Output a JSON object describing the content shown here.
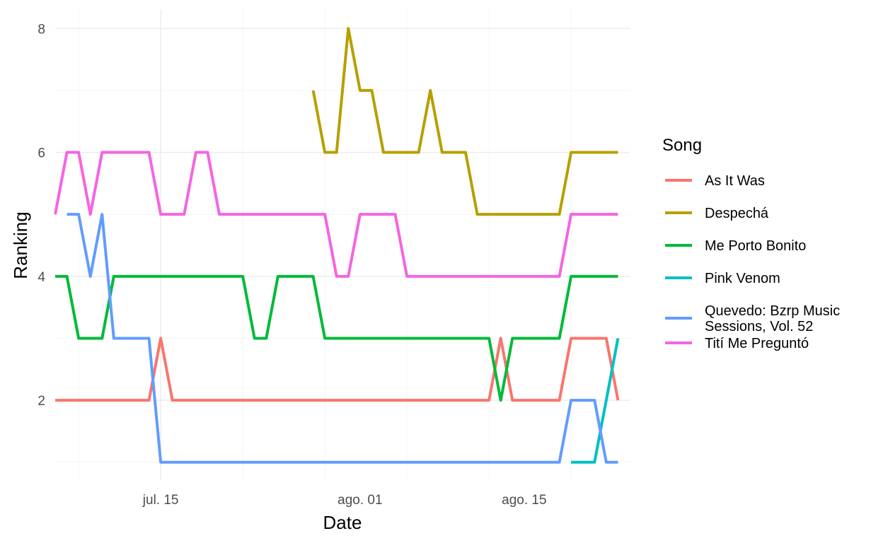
{
  "chart_data": {
    "type": "line",
    "title": "",
    "xlabel": "Date",
    "ylabel": "Ranking",
    "x_tick_labels": [
      {
        "date": "2022-07-15",
        "label": "jul. 15"
      },
      {
        "date": "2022-08-01",
        "label": "ago. 01"
      },
      {
        "date": "2022-08-15",
        "label": "ago. 15"
      }
    ],
    "y_ticks": [
      2,
      4,
      6,
      8
    ],
    "xlim": [
      "2022-07-06",
      "2022-08-24"
    ],
    "ylim": [
      0.7,
      8.3
    ],
    "grid": true,
    "legend": {
      "title": "Song",
      "position": "right"
    },
    "series": [
      {
        "name": "As It Was",
        "color": "#F8766D",
        "points": [
          [
            "2022-07-06",
            2
          ],
          [
            "2022-07-14",
            2
          ],
          [
            "2022-07-15",
            3
          ],
          [
            "2022-07-16",
            2
          ],
          [
            "2022-08-12",
            2
          ],
          [
            "2022-08-13",
            3
          ],
          [
            "2022-08-14",
            2
          ],
          [
            "2022-08-18",
            2
          ],
          [
            "2022-08-19",
            3
          ],
          [
            "2022-08-22",
            3
          ],
          [
            "2022-08-23",
            2
          ]
        ]
      },
      {
        "name": "Despechá",
        "color": "#B79F00",
        "points": [
          [
            "2022-07-28",
            7
          ],
          [
            "2022-07-29",
            6
          ],
          [
            "2022-07-30",
            6
          ],
          [
            "2022-07-31",
            8
          ],
          [
            "2022-08-01",
            7
          ],
          [
            "2022-08-02",
            7
          ],
          [
            "2022-08-03",
            6
          ],
          [
            "2022-08-06",
            6
          ],
          [
            "2022-08-07",
            7
          ],
          [
            "2022-08-08",
            6
          ],
          [
            "2022-08-10",
            6
          ],
          [
            "2022-08-11",
            5
          ],
          [
            "2022-08-18",
            5
          ],
          [
            "2022-08-19",
            6
          ],
          [
            "2022-08-23",
            6
          ]
        ]
      },
      {
        "name": "Me Porto Bonito",
        "color": "#00BA38",
        "points": [
          [
            "2022-07-06",
            4
          ],
          [
            "2022-07-07",
            4
          ],
          [
            "2022-07-08",
            3
          ],
          [
            "2022-07-10",
            3
          ],
          [
            "2022-07-11",
            4
          ],
          [
            "2022-07-22",
            4
          ],
          [
            "2022-07-23",
            3
          ],
          [
            "2022-07-24",
            3
          ],
          [
            "2022-07-25",
            4
          ],
          [
            "2022-07-28",
            4
          ],
          [
            "2022-07-29",
            3
          ],
          [
            "2022-08-12",
            3
          ],
          [
            "2022-08-13",
            2
          ],
          [
            "2022-08-14",
            3
          ],
          [
            "2022-08-18",
            3
          ],
          [
            "2022-08-19",
            4
          ],
          [
            "2022-08-23",
            4
          ]
        ]
      },
      {
        "name": "Pink Venom",
        "color": "#00BFC4",
        "points": [
          [
            "2022-08-19",
            1
          ],
          [
            "2022-08-21",
            1
          ],
          [
            "2022-08-23",
            3
          ]
        ]
      },
      {
        "name": "Quevedo: Bzrp Music Sessions, Vol. 52",
        "legend_lines": [
          "Quevedo: Bzrp Music",
          "Sessions, Vol. 52"
        ],
        "color": "#619CFF",
        "points": [
          [
            "2022-07-07",
            5
          ],
          [
            "2022-07-08",
            5
          ],
          [
            "2022-07-09",
            4
          ],
          [
            "2022-07-10",
            5
          ],
          [
            "2022-07-11",
            3
          ],
          [
            "2022-07-14",
            3
          ],
          [
            "2022-07-15",
            1
          ],
          [
            "2022-08-18",
            1
          ],
          [
            "2022-08-19",
            2
          ],
          [
            "2022-08-21",
            2
          ],
          [
            "2022-08-22",
            1
          ],
          [
            "2022-08-23",
            1
          ]
        ]
      },
      {
        "name": "Tití Me Preguntó",
        "color": "#F564E3",
        "points": [
          [
            "2022-07-06",
            5
          ],
          [
            "2022-07-07",
            6
          ],
          [
            "2022-07-08",
            6
          ],
          [
            "2022-07-09",
            5
          ],
          [
            "2022-07-10",
            6
          ],
          [
            "2022-07-14",
            6
          ],
          [
            "2022-07-15",
            5
          ],
          [
            "2022-07-17",
            5
          ],
          [
            "2022-07-18",
            6
          ],
          [
            "2022-07-19",
            6
          ],
          [
            "2022-07-20",
            5
          ],
          [
            "2022-07-29",
            5
          ],
          [
            "2022-07-30",
            4
          ],
          [
            "2022-07-31",
            4
          ],
          [
            "2022-08-01",
            5
          ],
          [
            "2022-08-04",
            5
          ],
          [
            "2022-08-05",
            4
          ],
          [
            "2022-08-18",
            4
          ],
          [
            "2022-08-19",
            5
          ],
          [
            "2022-08-23",
            5
          ]
        ]
      }
    ]
  }
}
